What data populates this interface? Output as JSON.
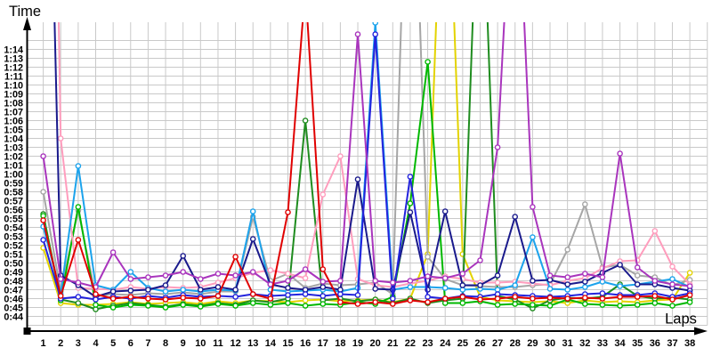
{
  "chart_data": {
    "type": "line",
    "title": "",
    "xlabel": "Laps",
    "ylabel": "Time",
    "x_ticks": [
      "1",
      "2",
      "3",
      "4",
      "5",
      "6",
      "7",
      "8",
      "9",
      "10",
      "11",
      "12",
      "13",
      "14",
      "15",
      "16",
      "17",
      "18",
      "19",
      "20",
      "21",
      "22",
      "23",
      "24",
      "25",
      "26",
      "27",
      "28",
      "29",
      "30",
      "31",
      "32",
      "33",
      "34",
      "35",
      "36",
      "37",
      "38"
    ],
    "y_ticks": [
      "0:44",
      "0:45",
      "0:46",
      "0:47",
      "0:48",
      "0:49",
      "0:50",
      "0:51",
      "0:52",
      "0:53",
      "0:54",
      "0:55",
      "0:56",
      "0:57",
      "0:58",
      "0:59",
      "1:00",
      "1:01",
      "1:02",
      "1:03",
      "1:04",
      "1:05",
      "1:06",
      "1:07",
      "1:08",
      "1:09",
      "1:10",
      "1:11",
      "1:12",
      "1:13",
      "1:14"
    ],
    "y_unit": "m:ss (lap time in seconds)",
    "ylim_seconds": [
      44,
      77
    ],
    "grid": true,
    "legend": "none",
    "series": [
      {
        "name": "yellow",
        "color": "#e3d300",
        "values": [
          51.7,
          45.5,
          45.3,
          45.3,
          45.4,
          45.6,
          45.4,
          45.5,
          45.6,
          45.4,
          45.7,
          45.5,
          45.8,
          45.7,
          45.6,
          45.8,
          45.9,
          45.7,
          45.8,
          45.9,
          45.6,
          46.0,
          51.0,
          105,
          51.0,
          46.2,
          45.8,
          45.7,
          45.6,
          45.7,
          45.5,
          45.8,
          45.6,
          45.7,
          45.6,
          45.8,
          45.9,
          48.9
        ]
      },
      {
        "name": "gray",
        "color": "#a6a6a6",
        "values": [
          58.0,
          46.8,
          55.9,
          46.3,
          46.5,
          46.4,
          46.6,
          46.5,
          46.7,
          46.5,
          46.8,
          46.8,
          55.2,
          48.0,
          48.8,
          47.2,
          47.7,
          47.5,
          47.6,
          47.8,
          46.5,
          110,
          50.7,
          48.2,
          47.5,
          47.4,
          47.3,
          47.3,
          47.5,
          47.6,
          51.5,
          56.6,
          49.5,
          49.8,
          48.6,
          48.4,
          47.5,
          48.1
        ]
      },
      {
        "name": "darkgreen",
        "color": "#1f8c1f",
        "values": [
          55.5,
          45.9,
          45.5,
          44.8,
          45.2,
          45.5,
          45.3,
          45.1,
          45.4,
          45.2,
          45.5,
          45.3,
          45.8,
          45.6,
          46.0,
          66.0,
          45.8,
          46.0,
          45.7,
          45.9,
          45.5,
          46.0,
          45.5,
          45.8,
          46.0,
          100,
          46.3,
          45.9,
          44.9,
          45.8,
          46.1,
          46.0,
          46.2,
          47.6,
          46.3,
          46.0,
          46.1,
          45.9
        ]
      },
      {
        "name": "green",
        "color": "#00b800",
        "values": [
          55.3,
          45.8,
          56.3,
          45.3,
          45.0,
          45.3,
          45.2,
          45.0,
          45.3,
          45.1,
          45.4,
          45.2,
          45.5,
          45.3,
          45.5,
          45.2,
          45.4,
          45.3,
          45.6,
          45.4,
          46.2,
          56.7,
          72.6,
          45.5,
          45.5,
          45.7,
          45.3,
          45.4,
          45.3,
          45.2,
          45.9,
          45.4,
          45.3,
          45.2,
          45.3,
          45.5,
          45.2,
          45.6
        ]
      },
      {
        "name": "pink",
        "color": "#ff9dbd",
        "values": [
          180,
          64.0,
          47.2,
          47.1,
          47.0,
          47.3,
          47.1,
          47.3,
          47.2,
          47.3,
          47.8,
          48.3,
          48.9,
          49.2,
          48.8,
          48.3,
          57.7,
          62.0,
          48.2,
          47.5,
          47.3,
          47.7,
          48.0,
          48.5,
          48.2,
          47.8,
          47.8,
          47.9,
          47.7,
          47.5,
          48.0,
          48.3,
          49.4,
          50.2,
          50.3,
          53.6,
          49.6,
          47.6
        ]
      },
      {
        "name": "cyan",
        "color": "#1ca3ec",
        "values": [
          54.1,
          46.5,
          60.9,
          47.5,
          47.0,
          49.0,
          47.2,
          46.8,
          47.0,
          46.8,
          47.0,
          46.9,
          55.8,
          47.0,
          46.8,
          46.9,
          47.0,
          46.8,
          47.2,
          77.0,
          47.0,
          47.3,
          47.3,
          47.2,
          47.0,
          47.1,
          47.0,
          47.5,
          52.9,
          47.1,
          47.0,
          47.3,
          47.9,
          47.4,
          47.6,
          47.9,
          48.2,
          47.3
        ]
      },
      {
        "name": "navy",
        "color": "#1a1a8c",
        "values": [
          130,
          48.6,
          47.5,
          46.2,
          46.8,
          46.9,
          47.0,
          47.5,
          50.8,
          47.0,
          47.3,
          47.0,
          52.7,
          47.6,
          47.2,
          47.0,
          47.3,
          47.0,
          59.4,
          47.1,
          47.0,
          55.7,
          47.0,
          55.8,
          47.5,
          47.5,
          48.6,
          55.2,
          48.0,
          48.1,
          47.6,
          47.9,
          48.9,
          49.8,
          47.6,
          47.6,
          47.2,
          46.9
        ]
      },
      {
        "name": "blue",
        "color": "#2323dd",
        "values": [
          52.6,
          46.0,
          46.2,
          45.9,
          46.2,
          46.0,
          46.3,
          46.1,
          46.4,
          46.2,
          46.3,
          46.2,
          46.5,
          46.3,
          46.4,
          46.5,
          46.3,
          46.5,
          46.4,
          75.7,
          46.0,
          59.7,
          46.2,
          46.0,
          46.3,
          46.2,
          46.5,
          46.4,
          46.3,
          46.2,
          46.3,
          46.5,
          46.6,
          46.4,
          46.4,
          46.6,
          46.2,
          46.6
        ]
      },
      {
        "name": "purple",
        "color": "#a935bd",
        "values": [
          62.0,
          48.2,
          47.8,
          47.3,
          51.2,
          48.2,
          48.4,
          48.6,
          49.0,
          48.2,
          48.8,
          48.6,
          49.0,
          47.6,
          48.0,
          49.3,
          47.9,
          48.0,
          75.7,
          48.0,
          47.8,
          48.0,
          48.5,
          48.3,
          48.8,
          50.3,
          63.0,
          100,
          56.3,
          48.6,
          48.4,
          48.8,
          48.4,
          62.3,
          49.5,
          48.0,
          47.6,
          47.4
        ]
      },
      {
        "name": "red",
        "color": "#e00000",
        "values": [
          54.8,
          46.3,
          52.6,
          46.5,
          46.0,
          46.2,
          46.0,
          45.9,
          46.1,
          46.0,
          46.3,
          50.7,
          46.5,
          46.0,
          55.7,
          81.0,
          49.3,
          45.6,
          45.4,
          45.6,
          45.4,
          45.8,
          45.6,
          46.0,
          46.2,
          45.9,
          46.0,
          46.2,
          46.0,
          46.1,
          46.0,
          46.1,
          46.0,
          46.2,
          46.2,
          46.3,
          45.9,
          46.4
        ]
      }
    ]
  }
}
